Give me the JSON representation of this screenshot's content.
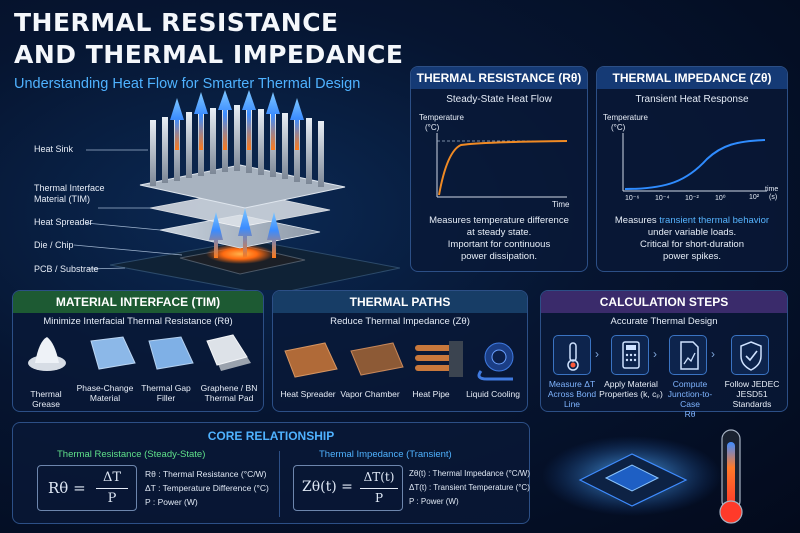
{
  "header": {
    "title_line1": "THERMAL RESISTANCE",
    "title_line2": "AND THERMAL IMPEDANCE",
    "subtitle": "Understanding Heat Flow for Smarter Thermal Design"
  },
  "stack_labels": [
    "Heat Sink",
    "Thermal Interface",
    "Material (TIM)",
    "Heat Spreader",
    "Die / Chip",
    "PCB / Substrate"
  ],
  "resistance_panel": {
    "title": "THERMAL RESISTANCE (Rθ)",
    "subtitle": "Steady-State Heat Flow",
    "ylabel_line1": "Temperature",
    "ylabel_line2": "(°C)",
    "xlabel": "Time",
    "desc_line1": "Measures temperature difference",
    "desc_line2": "at steady state.",
    "desc_line3": "Important for continuous",
    "desc_line4": "power dissipation."
  },
  "impedance_panel": {
    "title": "THERMAL IMPEDANCE (Zθ)",
    "subtitle": "Transient Heat Response",
    "ylabel_line1": "Temperature",
    "ylabel_line2": "(°C)",
    "xticks": [
      "10⁻⁶",
      "10⁻⁴",
      "10⁻²",
      "10⁰",
      "10²"
    ],
    "xlabel_line1": "time",
    "xlabel_line2": "(s)",
    "desc_pre": "Measures ",
    "desc_hl": "transient thermal behavior",
    "desc_line2": "under variable loads.",
    "desc_line3": "Critical for short-duration",
    "desc_line4": "power spikes."
  },
  "material_panel": {
    "title": "MATERIAL INTERFACE (TIM)",
    "subtitle": "Minimize Interfacial Thermal Resistance (Rθ)",
    "items": [
      {
        "line1": "Thermal Grease",
        "line2": ""
      },
      {
        "line1": "Phase-Change",
        "line2": "Material"
      },
      {
        "line1": "Thermal Gap",
        "line2": "Filler"
      },
      {
        "line1": "Graphene / BN",
        "line2": "Thermal Pad"
      }
    ]
  },
  "paths_panel": {
    "title": "THERMAL PATHS",
    "subtitle": "Reduce Thermal Impedance (Zθ)",
    "items": [
      "Heat Spreader",
      "Vapor Chamber",
      "Heat Pipe",
      "Liquid Cooling"
    ]
  },
  "steps_panel": {
    "title": "CALCULATION STEPS",
    "subtitle": "Accurate Thermal Design",
    "steps": [
      {
        "line1": "Measure ΔT",
        "line2": "Across Bond Line",
        "line3": ""
      },
      {
        "line1": "Apply Material",
        "line2": "Properties (k, cₚ)",
        "line3": ""
      },
      {
        "line1": "Compute",
        "line2": "Junction-to-Case",
        "line3": "Rθ"
      },
      {
        "line1": "Follow JEDEC",
        "line2": "JESD51",
        "line3": "Standards"
      }
    ]
  },
  "core_panel": {
    "title": "CORE RELATIONSHIP",
    "left_title": "Thermal Resistance (Steady-State)",
    "left_formula_lhs": "Rθ =",
    "left_formula_num": "ΔT",
    "left_formula_den": "P",
    "left_legend": [
      "Rθ  : Thermal Resistance (°C/W)",
      "ΔT  : Temperature Difference (°C)",
      "P    : Power (W)"
    ],
    "right_title": "Thermal Impedance (Transient)",
    "right_formula_lhs": "Zθ(t) =",
    "right_formula_num": "ΔT(t)",
    "right_formula_den": "P",
    "right_legend": [
      "Zθ(t)  : Thermal Impedance (°C/W)",
      "ΔT(t)  : Transient Temperature (°C)",
      "P        : Power (W)"
    ]
  },
  "colors": {
    "accent_blue": "#4fb2ff",
    "orange": "#f08a24",
    "green_header": "#1d5a33",
    "navy": "#061531"
  }
}
